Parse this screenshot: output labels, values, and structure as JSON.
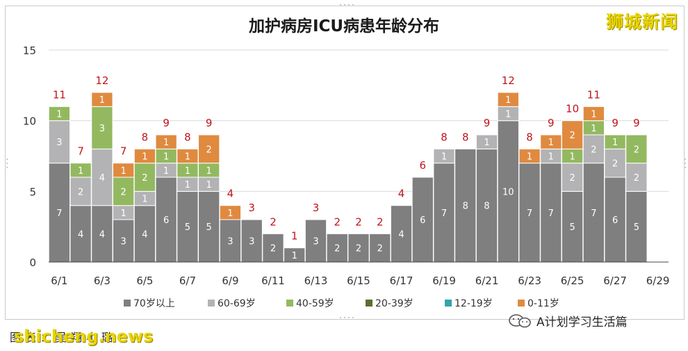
{
  "title": "加护病房ICU病患年龄分布",
  "watermark_top": "狮城新闻",
  "watermark_bottom": "shicheng.news",
  "caption": "图表：吴翔小璐",
  "wechat_account": "A计划学习生活篇",
  "colors": {
    "70岁以上": "#7f7f7f",
    "60-69岁": "#b3b3b5",
    "40-59岁": "#93b960",
    "20-39岁": "#5a6f2d",
    "12-19岁": "#34a3ae",
    "0-11岁": "#e08a40",
    "total_label": "#c0141c"
  },
  "chart_data": {
    "type": "bar",
    "stacked": true,
    "title": "加护病房ICU病患年龄分布",
    "ylim": [
      0,
      15
    ],
    "yticks": [
      0,
      5,
      10,
      15
    ],
    "grid": true,
    "legend_position": "bottom",
    "categories": [
      "6/1",
      "6/2",
      "6/3",
      "6/4",
      "6/5",
      "6/6",
      "6/7",
      "6/8",
      "6/9",
      "6/10",
      "6/11",
      "6/12",
      "6/13",
      "6/14",
      "6/15",
      "6/16",
      "6/17",
      "6/18",
      "6/19",
      "6/20",
      "6/21",
      "6/22",
      "6/23",
      "6/24",
      "6/25",
      "6/26",
      "6/27",
      "6/28",
      "6/29"
    ],
    "xtick_labels": [
      "6/1",
      "6/3",
      "6/5",
      "6/7",
      "6/9",
      "6/11",
      "6/13",
      "6/15",
      "6/17",
      "6/19",
      "6/21",
      "6/23",
      "6/25",
      "6/27",
      "6/29"
    ],
    "series": [
      {
        "name": "70岁以上",
        "values": [
          7,
          4,
          4,
          3,
          4,
          6,
          5,
          5,
          3,
          3,
          2,
          1,
          3,
          2,
          2,
          2,
          4,
          6,
          7,
          8,
          8,
          10,
          7,
          7,
          5,
          7,
          6,
          5,
          0
        ]
      },
      {
        "name": "60-69岁",
        "values": [
          3,
          2,
          4,
          1,
          1,
          1,
          1,
          1,
          0,
          0,
          0,
          0,
          0,
          0,
          0,
          0,
          0,
          0,
          1,
          0,
          1,
          1,
          0,
          1,
          2,
          2,
          2,
          2,
          0
        ]
      },
      {
        "name": "40-59岁",
        "values": [
          1,
          1,
          3,
          2,
          2,
          1,
          1,
          1,
          0,
          0,
          0,
          0,
          0,
          0,
          0,
          0,
          0,
          0,
          0,
          0,
          0,
          0,
          0,
          0,
          1,
          1,
          1,
          2,
          0
        ]
      },
      {
        "name": "20-39岁",
        "values": [
          0,
          0,
          0,
          0,
          0,
          0,
          0,
          0,
          0,
          0,
          0,
          0,
          0,
          0,
          0,
          0,
          0,
          0,
          0,
          0,
          0,
          0,
          0,
          0,
          0,
          0,
          0,
          0,
          0
        ]
      },
      {
        "name": "12-19岁",
        "values": [
          0,
          0,
          0,
          0,
          0,
          0,
          0,
          0,
          0,
          0,
          0,
          0,
          0,
          0,
          0,
          0,
          0,
          0,
          0,
          0,
          0,
          0,
          0,
          0,
          0,
          0,
          0,
          0,
          0
        ]
      },
      {
        "name": "0-11岁",
        "values": [
          0,
          0,
          1,
          1,
          1,
          1,
          1,
          2,
          1,
          0,
          0,
          0,
          0,
          0,
          0,
          0,
          0,
          0,
          0,
          0,
          0,
          1,
          1,
          1,
          2,
          1,
          0,
          0,
          0
        ]
      }
    ],
    "totals": [
      11,
      7,
      12,
      7,
      8,
      9,
      8,
      9,
      4,
      3,
      2,
      1,
      3,
      2,
      2,
      2,
      4,
      6,
      8,
      8,
      9,
      12,
      8,
      9,
      10,
      11,
      9,
      9,
      null
    ]
  }
}
